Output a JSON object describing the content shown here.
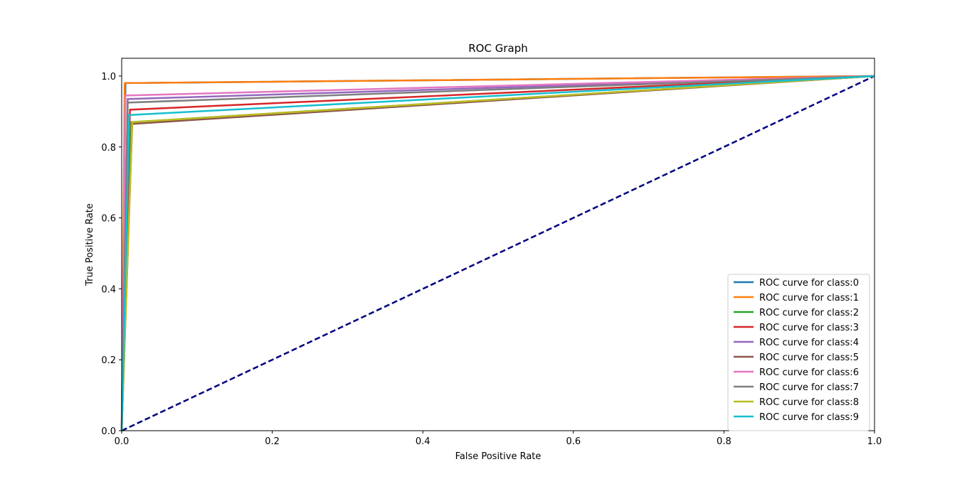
{
  "chart_data": {
    "type": "line",
    "title": "ROC Graph",
    "xlabel": "False Positive Rate",
    "ylabel": "True Positive Rate",
    "xlim": [
      0.0,
      1.0
    ],
    "ylim": [
      0.0,
      1.05
    ],
    "x_ticks": [
      "0.0",
      "0.2",
      "0.4",
      "0.6",
      "0.8",
      "1.0"
    ],
    "y_ticks": [
      "0.0",
      "0.2",
      "0.4",
      "0.6",
      "0.8",
      "1.0"
    ],
    "grid": false,
    "legend_position": "lower right",
    "series": [
      {
        "name": "ROC curve for class:0",
        "color": "#1f77b4",
        "x": [
          0,
          0.005,
          1
        ],
        "y": [
          0,
          0.98,
          1
        ]
      },
      {
        "name": "ROC curve for class:1",
        "color": "#ff7f0e",
        "x": [
          0,
          0.004,
          1
        ],
        "y": [
          0,
          0.98,
          1
        ]
      },
      {
        "name": "ROC curve for class:2",
        "color": "#2ca02c",
        "x": [
          0,
          0.013,
          1
        ],
        "y": [
          0,
          0.87,
          1
        ]
      },
      {
        "name": "ROC curve for class:3",
        "color": "#d62728",
        "x": [
          0,
          0.011,
          1
        ],
        "y": [
          0,
          0.905,
          1
        ]
      },
      {
        "name": "ROC curve for class:4",
        "color": "#9467bd",
        "x": [
          0,
          0.008,
          1
        ],
        "y": [
          0,
          0.935,
          1
        ]
      },
      {
        "name": "ROC curve for class:5",
        "color": "#8c564b",
        "x": [
          0,
          0.014,
          1
        ],
        "y": [
          0,
          0.865,
          1
        ]
      },
      {
        "name": "ROC curve for class:6",
        "color": "#e377c2",
        "x": [
          0,
          0.005,
          1
        ],
        "y": [
          0,
          0.945,
          1
        ]
      },
      {
        "name": "ROC curve for class:7",
        "color": "#7f7f7f",
        "x": [
          0,
          0.008,
          1
        ],
        "y": [
          0,
          0.925,
          1
        ]
      },
      {
        "name": "ROC curve for class:8",
        "color": "#bcbd22",
        "x": [
          0,
          0.014,
          1
        ],
        "y": [
          0,
          0.87,
          1
        ]
      },
      {
        "name": "ROC curve for class:9",
        "color": "#17becf",
        "x": [
          0,
          0.01,
          1
        ],
        "y": [
          0,
          0.89,
          1
        ]
      }
    ],
    "diagonal": {
      "color": "#000080",
      "x": [
        0,
        1
      ],
      "y": [
        0,
        1
      ],
      "style": "dashed"
    }
  }
}
